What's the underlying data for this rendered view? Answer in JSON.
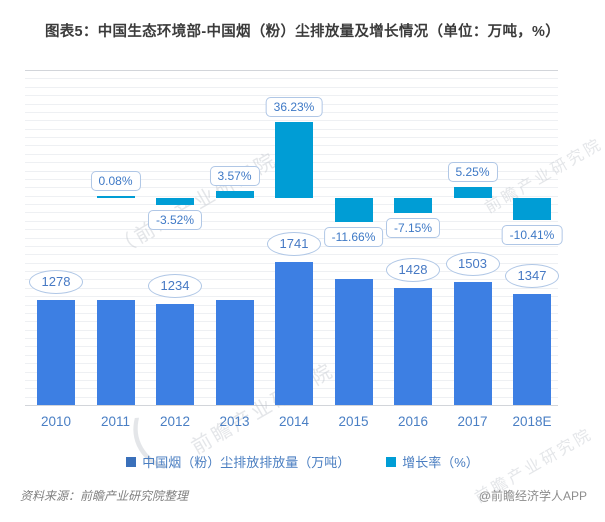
{
  "title": "图表5：中国生态环境部-中国烟（粉）尘排放量及增长情况（单位：万吨，%）",
  "chart_data": {
    "type": "bar",
    "categories": [
      "2010",
      "2011",
      "2012",
      "2013",
      "2014",
      "2015",
      "2016",
      "2017",
      "2018E"
    ],
    "series": [
      {
        "name": "中国烟（粉）尘排放排放量（万吨）",
        "type": "bar",
        "axis": "left",
        "color": "#3d7fe3",
        "values": [
          1278,
          1279,
          1234,
          1278,
          1741,
          1538,
          1428,
          1503,
          1347
        ],
        "visible_labels": [
          "1278",
          "",
          "1234",
          "",
          "1741",
          "",
          "1428",
          "1503",
          "1347"
        ]
      },
      {
        "name": "增长率（%）",
        "type": "bar",
        "axis": "right",
        "color": "#009dd5",
        "values": [
          null,
          0.08,
          -3.52,
          3.57,
          36.23,
          -11.66,
          -7.15,
          5.25,
          -10.41
        ],
        "visible_labels": [
          "",
          "0.08%",
          "-3.52%",
          "3.57%",
          "36.23%",
          "-11.66%",
          "-7.15%",
          "5.25%",
          "-10.41%"
        ]
      }
    ],
    "grid": true,
    "legend_position": "bottom",
    "x_axis_visible_ticks_only": true
  },
  "legend": {
    "items": [
      {
        "label": "中国烟（粉）尘排放排放量（万吨）",
        "color": "#3a70ba"
      },
      {
        "label": "增长率（%）",
        "color": "#009dd5"
      }
    ]
  },
  "watermark": {
    "text": "前瞻产业研究院",
    "logo_glyph": "（"
  },
  "footer": {
    "source": "资料来源：前瞻产业研究院整理",
    "credit": "@前瞻经济学人APP"
  }
}
